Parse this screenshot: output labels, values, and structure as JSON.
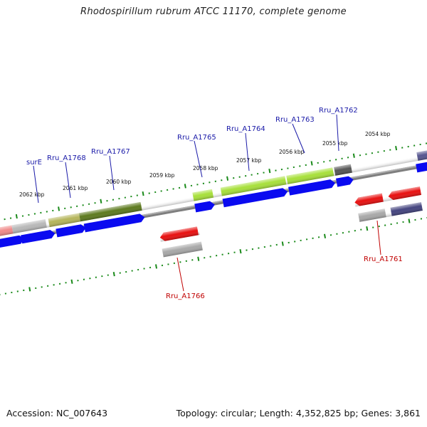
{
  "title": "Rhodospirillum rubrum ATCC 11170, complete genome",
  "footer": {
    "accession": "Accession: NC_007643",
    "summary": "Topology: circular; Length: 4,352,825 bp; Genes: 3,861"
  },
  "colors": {
    "backbone": "#888888",
    "tick": "#1a8a1a",
    "label_blue": "#1a1aa8",
    "label_red": "#c00000"
  },
  "scale_labels": [
    "2062 kbp",
    "2061 kbp",
    "2060 kbp",
    "2059 kbp",
    "2058 kbp",
    "2057 kbp",
    "2056 kbp",
    "2055 kbp",
    "2054 kbp"
  ],
  "gene_labels_forward": [
    "surE",
    "Rru_A1768",
    "Rru_A1767",
    "Rru_A1765",
    "Rru_A1764",
    "Rru_A1763",
    "Rru_A1762"
  ],
  "gene_labels_reverse": [
    "Rru_A1766",
    "Rru_A1761"
  ]
}
